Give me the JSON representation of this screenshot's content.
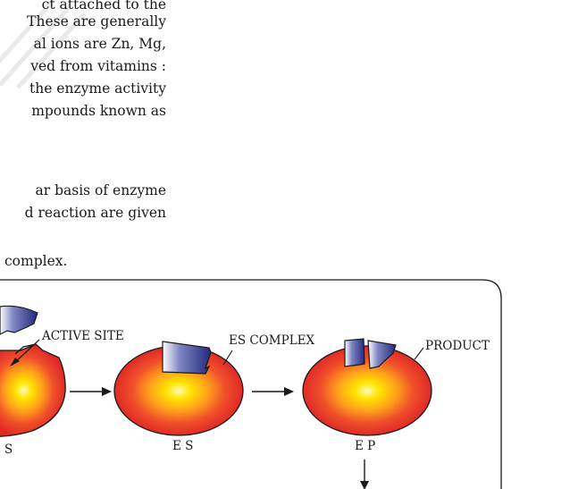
{
  "paragraph_1": {
    "lines": [
      "ct attached to the",
      "These are generally",
      "al ions are Zn, Mg,",
      "ved from vitamins :",
      "the enzyme activity",
      "mpounds known as"
    ]
  },
  "paragraph_2": {
    "lines": [
      "ar basis of enzyme",
      "d reaction are given"
    ]
  },
  "caption_fragment": "complex.",
  "figure": {
    "labels": {
      "active_site": "ACTIVE SITE",
      "es_complex": "ES COMPLEX",
      "product": "PRODUCT",
      "stage_1": "S",
      "stage_2": "E S",
      "stage_3": "E P"
    },
    "colors": {
      "enzyme_outer": "#e8342a",
      "enzyme_inner": "#ffe600",
      "substrate": "#2f3790",
      "outline": "#1a1a1a"
    }
  }
}
